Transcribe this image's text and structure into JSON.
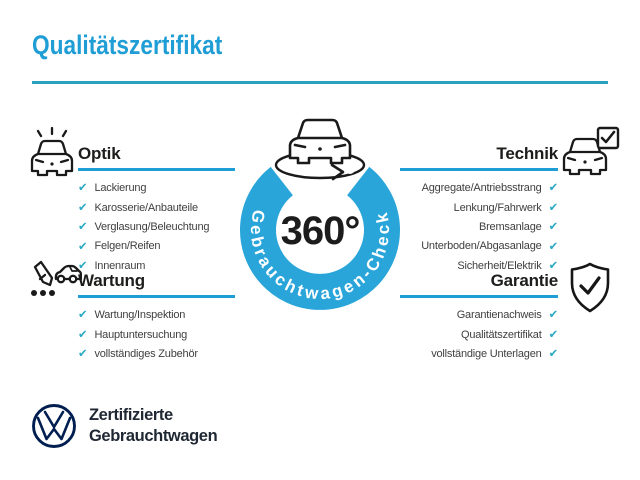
{
  "title": "Qualitätszertifikat",
  "badge": {
    "center_text": "360°",
    "ring_text": "Gebrauchtwagen-Check",
    "icon": "car-rotate-icon"
  },
  "sections": [
    {
      "id": "optik",
      "side": "left",
      "title": "Optik",
      "icon": "car-shine-icon",
      "items": [
        "Lackierung",
        "Karosserie/Anbauteile",
        "Verglasung/Beleuchtung",
        "Felgen/Reifen",
        "Innenraum"
      ]
    },
    {
      "id": "technik",
      "side": "right",
      "title": "Technik",
      "icon": "car-checkbox-icon",
      "items": [
        "Aggregate/Antriebsstrang",
        "Lenkung/Fahrwerk",
        "Bremsanlage",
        "Unterboden/Abgasanlage",
        "Sicherheit/Elektrik"
      ]
    },
    {
      "id": "wartung",
      "side": "left",
      "title": "Wartung",
      "icon": "service-note-icon",
      "items": [
        "Wartung/Inspektion",
        "Hauptuntersuchung",
        "vollständiges Zubehör"
      ]
    },
    {
      "id": "garantie",
      "side": "right",
      "title": "Garantie",
      "icon": "shield-check-icon",
      "items": [
        "Garantienachweis",
        "Qualitätszertifikat",
        "vollständige Unterlagen"
      ]
    }
  ],
  "footer": {
    "logo": "vw-logo",
    "line1": "Zertifizierte",
    "line2": "Gebrauchtwagen"
  },
  "icons": {
    "check_glyph": "✔"
  },
  "colors": {
    "accent_blue": "#1f9dd5",
    "divider_teal": "#2aa2be",
    "ring_blue": "#29a5da",
    "check_teal": "#2aa8c4",
    "heading_dark": "#1d1d1b",
    "item_gray": "#3f3f3f",
    "vw_navy": "#001e50"
  }
}
